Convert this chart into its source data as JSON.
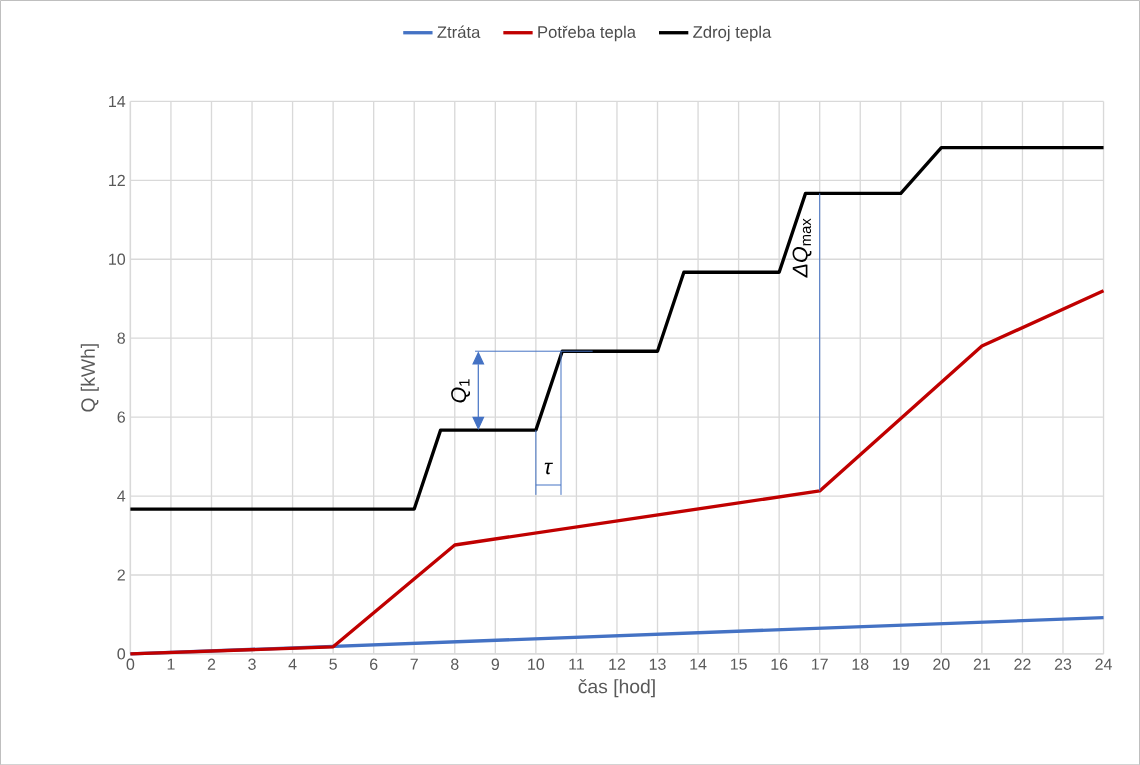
{
  "chart_data": {
    "type": "line",
    "xlabel": "čas [hod]",
    "ylabel": "Q [kWh]",
    "xlim": [
      0,
      24
    ],
    "xticks": [
      0,
      1,
      2,
      3,
      4,
      5,
      6,
      7,
      8,
      9,
      10,
      11,
      12,
      13,
      14,
      15,
      16,
      17,
      18,
      19,
      20,
      21,
      22,
      23,
      24
    ],
    "ylim": [
      0,
      14
    ],
    "yticks": [
      0,
      2,
      4,
      6,
      8,
      10,
      12,
      14
    ],
    "grid": true,
    "legend": "top",
    "marker": "none",
    "series": [
      {
        "name": "Ztráta",
        "color": "#4472c4",
        "x": [
          0,
          24
        ],
        "values": [
          0,
          0.92
        ]
      },
      {
        "name": "Potřeba tepla",
        "color": "#c00000",
        "x": [
          0,
          5,
          8,
          17,
          21,
          24
        ],
        "values": [
          0,
          0.18,
          2.76,
          4.13,
          7.8,
          9.2
        ]
      },
      {
        "name": "Zdroj tepla",
        "color": "#000000",
        "x": [
          0,
          7,
          7.65,
          10,
          10.65,
          13,
          13.65,
          16,
          16.65,
          19,
          20,
          24
        ],
        "values": [
          3.67,
          3.67,
          5.67,
          5.67,
          7.67,
          7.67,
          9.67,
          9.67,
          11.67,
          11.67,
          12.83,
          12.83
        ]
      },
      {
        "color": "#4472c4",
        "x": [
          8.5,
          11.4
        ],
        "values": [
          7.67,
          7.67
        ]
      },
      {
        "color": "#4472c4",
        "x": [
          10,
          10
        ],
        "values": [
          5.67,
          4.03
        ]
      },
      {
        "color": "#4472c4",
        "x": [
          10.62,
          10.62
        ],
        "values": [
          7.67,
          4.03
        ]
      },
      {
        "color": "#4472c4",
        "x": [
          10,
          10.62
        ],
        "values": [
          4.28,
          4.28
        ]
      },
      {
        "color": "#4472c4",
        "x": [
          17,
          17
        ],
        "values": [
          4.13,
          11.67
        ]
      }
    ],
    "annotations": [
      "*Q*$_{1}$",
      {
        "text": "*ΔQ*$_{max}$",
        "x": 17,
        "y": 10.3
      },
      "*τ*"
    ]
  }
}
